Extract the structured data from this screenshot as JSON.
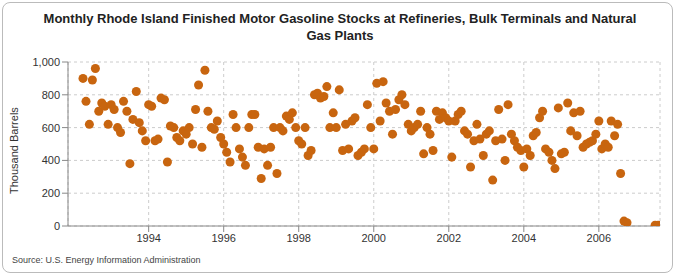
{
  "chart_data": {
    "type": "scatter",
    "title": "Monthly Rhode Island Finished Motor Gasoline Stocks at Refineries, Bulk Terminals and Natural Gas Plants",
    "y_label": "Thousand Barrels",
    "source": "Source: U.S. Energy Information Administration",
    "color": "#c8650f",
    "marker": "circle",
    "grid": true,
    "xlim": [
      1991.85,
      2007.63
    ],
    "xticks": [
      1994,
      1996,
      1998,
      2000,
      2002,
      2004,
      2006
    ],
    "ylim": [
      0,
      1000
    ],
    "yticks": [
      0,
      200,
      400,
      600,
      800,
      {
        "value": 1000,
        "label": "1,000"
      }
    ],
    "x": [
      1992.25,
      1992.33,
      1992.42,
      1992.5,
      1992.58,
      1992.67,
      1992.75,
      1992.83,
      1992.92,
      1993,
      1993.08,
      1993.17,
      1993.25,
      1993.33,
      1993.42,
      1993.5,
      1993.58,
      1993.67,
      1993.75,
      1993.83,
      1993.92,
      1994,
      1994.08,
      1994.17,
      1994.25,
      1994.33,
      1994.42,
      1994.5,
      1994.58,
      1994.67,
      1994.75,
      1994.83,
      1994.92,
      1995,
      1995.08,
      1995.17,
      1995.25,
      1995.33,
      1995.42,
      1995.5,
      1995.58,
      1995.67,
      1995.75,
      1995.83,
      1995.92,
      1996,
      1996.08,
      1996.17,
      1996.25,
      1996.33,
      1996.42,
      1996.5,
      1996.58,
      1996.67,
      1996.75,
      1996.83,
      1996.92,
      1997,
      1997.08,
      1997.17,
      1997.25,
      1997.33,
      1997.42,
      1997.5,
      1997.58,
      1997.67,
      1997.75,
      1997.83,
      1997.92,
      1998,
      1998.08,
      1998.17,
      1998.25,
      1998.33,
      1998.42,
      1998.5,
      1998.58,
      1998.67,
      1998.75,
      1998.83,
      1998.92,
      1999,
      1999.08,
      1999.17,
      1999.25,
      1999.33,
      1999.42,
      1999.5,
      1999.58,
      1999.67,
      1999.75,
      1999.83,
      1999.92,
      2000,
      2000.08,
      2000.17,
      2000.25,
      2000.33,
      2000.42,
      2000.5,
      2000.58,
      2000.67,
      2000.75,
      2000.83,
      2000.92,
      2001,
      2001.08,
      2001.17,
      2001.25,
      2001.33,
      2001.42,
      2001.5,
      2001.58,
      2001.67,
      2001.75,
      2001.83,
      2001.92,
      2002,
      2002.08,
      2002.17,
      2002.25,
      2002.33,
      2002.42,
      2002.5,
      2002.58,
      2002.67,
      2002.75,
      2002.83,
      2002.92,
      2003,
      2003.08,
      2003.17,
      2003.25,
      2003.33,
      2003.42,
      2003.5,
      2003.58,
      2003.67,
      2003.75,
      2003.83,
      2003.92,
      2004,
      2004.08,
      2004.17,
      2004.25,
      2004.33,
      2004.42,
      2004.5,
      2004.58,
      2004.67,
      2004.75,
      2004.83,
      2004.92,
      2005,
      2005.08,
      2005.17,
      2005.25,
      2005.33,
      2005.42,
      2005.5,
      2005.58,
      2005.67,
      2005.75,
      2005.83,
      2005.92,
      2006,
      2006.08,
      2006.17,
      2006.25,
      2006.33,
      2006.42,
      2006.5,
      2006.58,
      2006.67,
      2006.75,
      2007.5,
      2007.58
    ],
    "values": [
      900,
      760,
      620,
      890,
      960,
      700,
      750,
      730,
      620,
      740,
      710,
      600,
      570,
      760,
      700,
      380,
      650,
      820,
      630,
      580,
      520,
      740,
      730,
      520,
      530,
      780,
      770,
      390,
      610,
      600,
      540,
      520,
      580,
      560,
      600,
      500,
      710,
      860,
      480,
      950,
      700,
      600,
      590,
      640,
      540,
      500,
      450,
      390,
      680,
      600,
      470,
      420,
      370,
      600,
      680,
      680,
      480,
      290,
      470,
      370,
      480,
      600,
      320,
      600,
      580,
      670,
      650,
      690,
      600,
      520,
      500,
      600,
      430,
      460,
      800,
      810,
      780,
      790,
      850,
      600,
      690,
      600,
      830,
      460,
      620,
      470,
      640,
      660,
      430,
      450,
      470,
      740,
      600,
      470,
      870,
      640,
      880,
      750,
      700,
      560,
      710,
      770,
      800,
      740,
      620,
      580,
      600,
      620,
      700,
      440,
      600,
      560,
      460,
      700,
      650,
      690,
      660,
      640,
      420,
      640,
      680,
      700,
      580,
      560,
      360,
      520,
      620,
      530,
      430,
      560,
      580,
      280,
      520,
      710,
      530,
      400,
      740,
      560,
      520,
      480,
      460,
      360,
      470,
      430,
      550,
      570,
      660,
      700,
      470,
      450,
      400,
      350,
      720,
      440,
      450,
      750,
      580,
      690,
      550,
      700,
      480,
      500,
      510,
      520,
      560,
      640,
      470,
      500,
      480,
      640,
      550,
      620,
      320,
      30,
      20,
      5,
      5
    ]
  }
}
